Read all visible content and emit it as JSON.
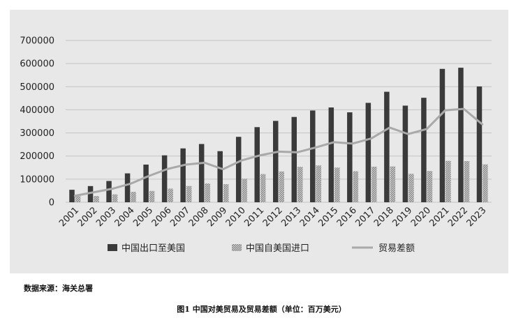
{
  "source_note": "数据来源：海关总署",
  "caption": "图1 中国对美贸易及贸易差额（单位：百万美元）",
  "chart_data": {
    "type": "bar",
    "title": "",
    "xlabel": "",
    "ylabel": "",
    "ylim": [
      0,
      700000
    ],
    "yticks": [
      0,
      100000,
      200000,
      300000,
      400000,
      500000,
      600000,
      700000
    ],
    "grid": true,
    "legend_position": "bottom",
    "categories": [
      "2001",
      "2002",
      "2003",
      "2004",
      "2005",
      "2006",
      "2007",
      "2008",
      "2009",
      "2010",
      "2011",
      "2012",
      "2013",
      "2014",
      "2015",
      "2016",
      "2017",
      "2018",
      "2019",
      "2020",
      "2021",
      "2022",
      "2023"
    ],
    "series": [
      {
        "name": "中国出口至美国",
        "kind": "bar",
        "color": "#3a3a3a",
        "pattern": "solid",
        "values": [
          54000,
          70000,
          92000,
          125000,
          163000,
          203000,
          233000,
          252000,
          221000,
          283000,
          325000,
          352000,
          369000,
          397000,
          410000,
          389000,
          430000,
          478000,
          418000,
          452000,
          577000,
          582000,
          501000
        ]
      },
      {
        "name": "中国自美国进口",
        "kind": "bar",
        "color": "#a8a8a8",
        "pattern": "hatched",
        "values": [
          26000,
          27000,
          34000,
          45000,
          49000,
          59000,
          70000,
          81000,
          78000,
          102000,
          122000,
          133000,
          153000,
          159000,
          150000,
          134000,
          154000,
          155000,
          123000,
          135000,
          179000,
          178000,
          164000
        ]
      },
      {
        "name": "贸易差额",
        "kind": "line",
        "color": "#a9a9a9",
        "pattern": "solid",
        "values": [
          28000,
          43000,
          58000,
          80000,
          114000,
          144000,
          163000,
          171000,
          143000,
          181000,
          203000,
          219000,
          216000,
          237000,
          260000,
          254000,
          276000,
          323000,
          295000,
          317000,
          398000,
          404000,
          337000
        ]
      }
    ]
  }
}
